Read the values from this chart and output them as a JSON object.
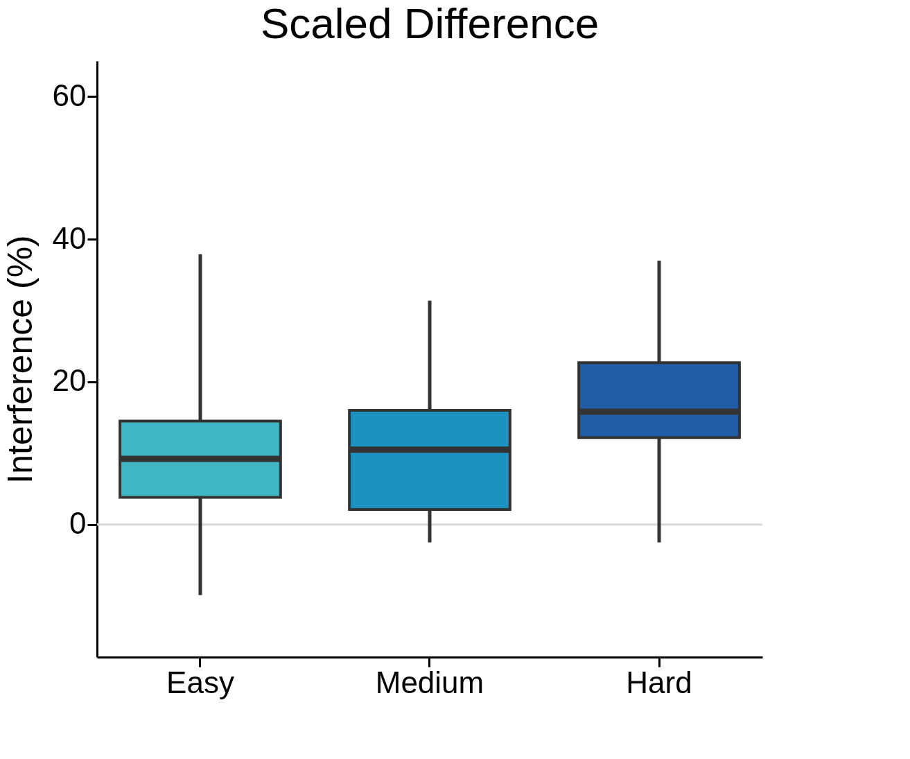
{
  "chart_data": {
    "type": "box",
    "title": "Scaled Difference",
    "ylabel": "Interference (%)",
    "categories": [
      "Easy",
      "Medium",
      "Hard"
    ],
    "colors": [
      "#41b6c4",
      "#1d91c0",
      "#225ea8"
    ],
    "boxes": [
      {
        "low": -9.9,
        "q1": 3.8,
        "median": 9.2,
        "q3": 14.5,
        "high": 37.9
      },
      {
        "low": -2.5,
        "q1": 2.1,
        "median": 10.5,
        "q3": 16.0,
        "high": 31.4
      },
      {
        "low": -2.5,
        "q1": 12.2,
        "median": 15.8,
        "q3": 22.7,
        "high": 37.0
      }
    ],
    "ylim": [
      -18.6,
      65
    ],
    "yticks": [
      0,
      20,
      40,
      60
    ],
    "ref_lines": [
      {
        "axis": "y",
        "value": 0,
        "color": "#d9d9d9"
      }
    ],
    "grid": false
  }
}
